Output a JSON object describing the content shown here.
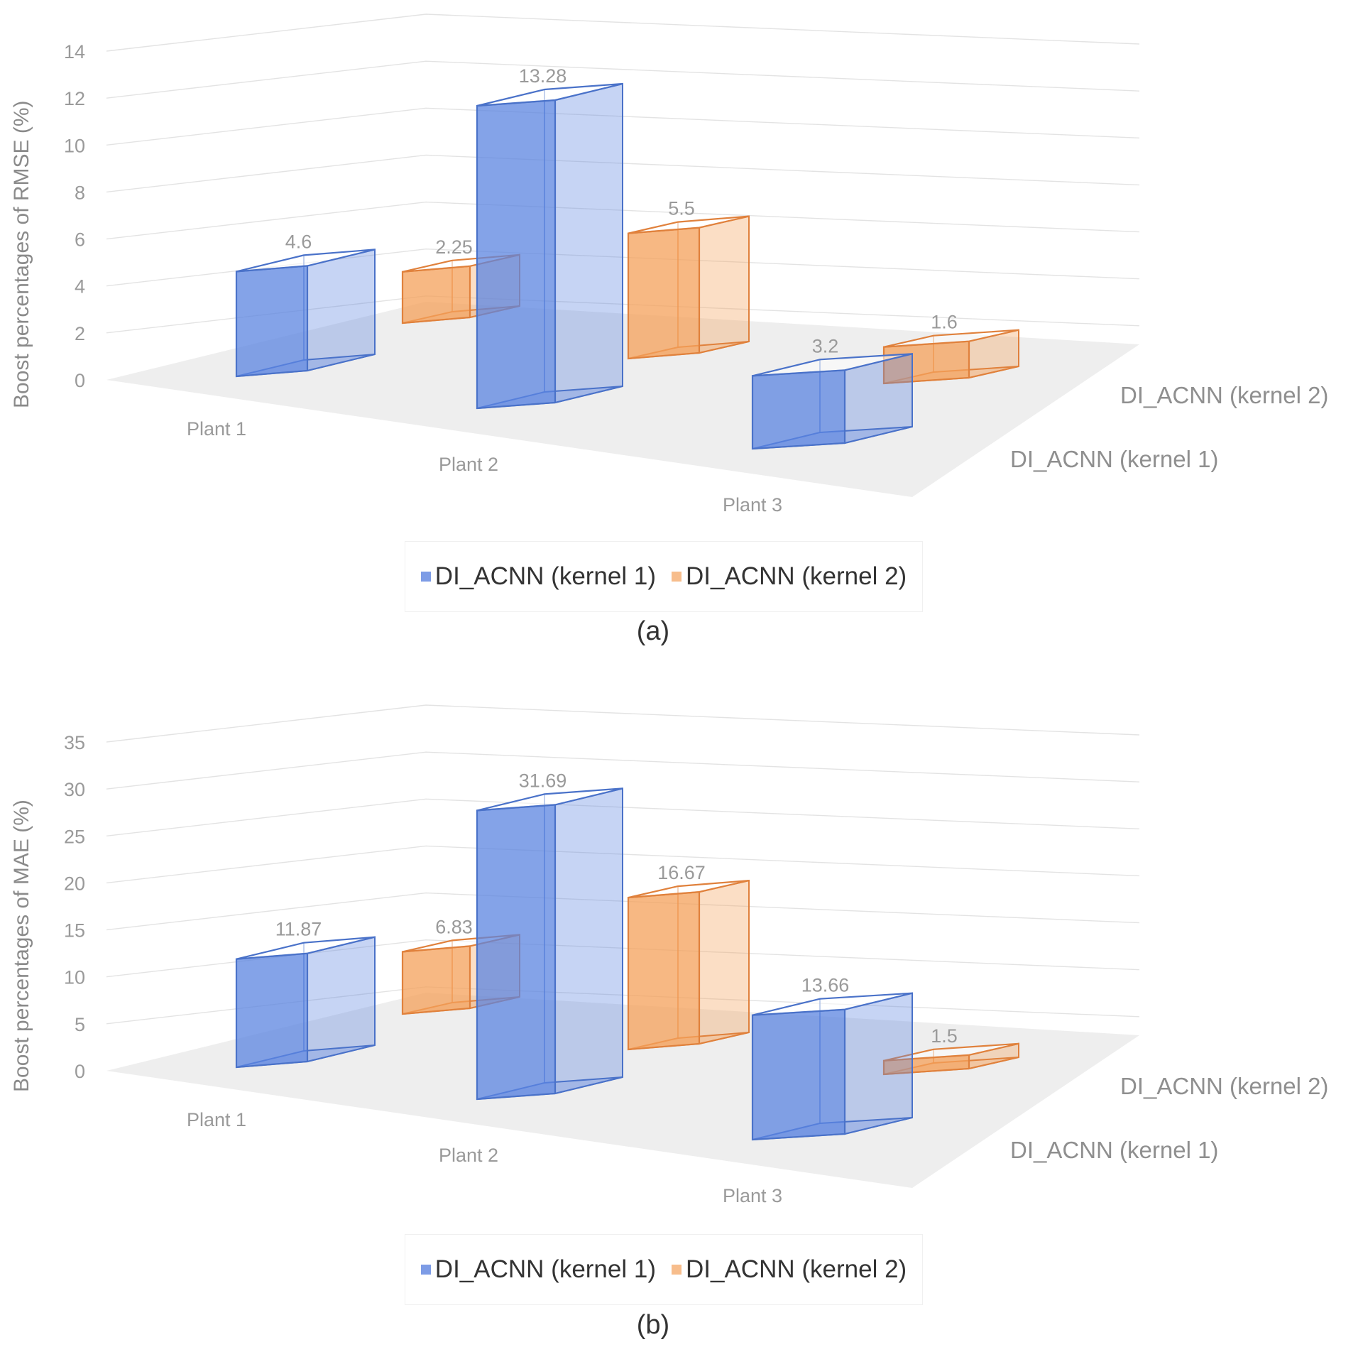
{
  "chart_data": [
    {
      "type": "bar",
      "subtype": "3d-column",
      "panel_label": "(a)",
      "ylabel": "Boost percentages of RMSE  (%)",
      "ylim": [
        0,
        14
      ],
      "yticks": [
        0,
        2,
        4,
        6,
        8,
        10,
        12,
        14
      ],
      "categories": [
        "Plant 1",
        "Plant 2",
        "Plant 3"
      ],
      "series": [
        {
          "name": "DI_ACNN (kernel 1)",
          "values": [
            4.6,
            13.28,
            3.2
          ],
          "labels": [
            "4.6",
            "13.28",
            "3.2"
          ]
        },
        {
          "name": "DI_ACNN (kernel 2)",
          "values": [
            2.25,
            5.5,
            1.6
          ],
          "labels": [
            "2.25",
            "5.5",
            "1.6"
          ]
        }
      ],
      "depth_labels": [
        "DI_ACNN (kernel 1)",
        "DI_ACNN (kernel 2)"
      ],
      "legend": [
        "DI_ACNN (kernel 1)",
        "DI_ACNN (kernel 2)"
      ],
      "grid": true
    },
    {
      "type": "bar",
      "subtype": "3d-column",
      "panel_label": "(b)",
      "ylabel": "Boost percentages of MAE  (%)",
      "ylim": [
        0,
        35
      ],
      "yticks": [
        0,
        5,
        10,
        15,
        20,
        25,
        30,
        35
      ],
      "categories": [
        "Plant 1",
        "Plant 2",
        "Plant 3"
      ],
      "series": [
        {
          "name": "DI_ACNN (kernel 1)",
          "values": [
            11.87,
            31.69,
            13.66
          ],
          "labels": [
            "11.87",
            "31.69",
            "13.66"
          ]
        },
        {
          "name": "DI_ACNN (kernel 2)",
          "values": [
            6.83,
            16.67,
            1.5
          ],
          "labels": [
            "6.83",
            "16.67",
            "1.5"
          ]
        }
      ],
      "depth_labels": [
        "DI_ACNN (kernel 1)",
        "DI_ACNN (kernel 2)"
      ],
      "legend": [
        "DI_ACNN (kernel 1)",
        "DI_ACNN (kernel 2)"
      ],
      "grid": true
    }
  ],
  "colors": {
    "kernel1_fill": "#5b84e0",
    "kernel1_stroke": "#4a72c9",
    "kernel2_fill": "#f4a05a",
    "kernel2_stroke": "#e0813c",
    "floor": "#e8e8e8",
    "grid": "#e3e3e3"
  }
}
